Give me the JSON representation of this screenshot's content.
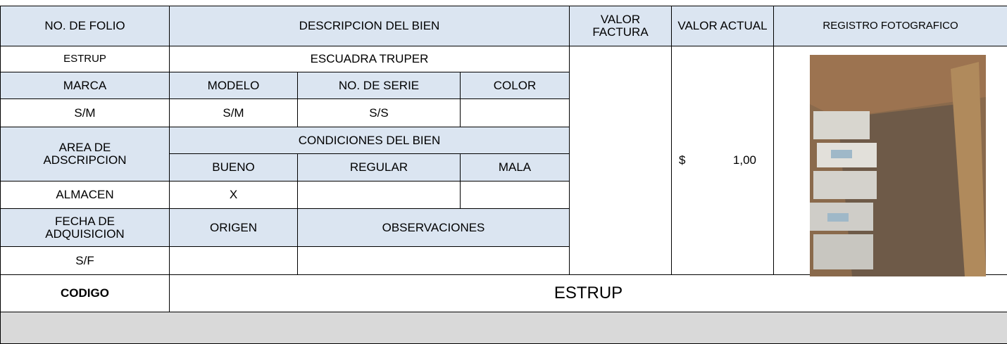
{
  "header": {
    "folio": "NO. DE FOLIO",
    "descripcion": "DESCRIPCION DEL BIEN",
    "valor_factura": "VALOR FACTURA",
    "valor_actual": "VALOR ACTUAL",
    "registro": "REGISTRO FOTOGRAFICO"
  },
  "item": {
    "folio": "ESTRUP",
    "descripcion": "ESCUADRA TRUPER"
  },
  "labels": {
    "marca": "MARCA",
    "modelo": "MODELO",
    "serie": "NO. DE SERIE",
    "color": "COLOR",
    "area": "AREA DE ADSCRIPCION",
    "condiciones": "CONDICIONES DEL BIEN",
    "bueno": "BUENO",
    "regular": "REGULAR",
    "mala": "MALA",
    "fecha": "FECHA DE ADQUISICION",
    "origen": "ORIGEN",
    "observaciones": "OBSERVACIONES",
    "codigo": "CODIGO"
  },
  "values": {
    "marca": "S/M",
    "modelo": "S/M",
    "serie": "S/S",
    "area": "ALMACEN",
    "bueno": "X",
    "fecha": "S/F",
    "currency": "$",
    "amount": "1,00",
    "codigo": "ESTRUP"
  }
}
